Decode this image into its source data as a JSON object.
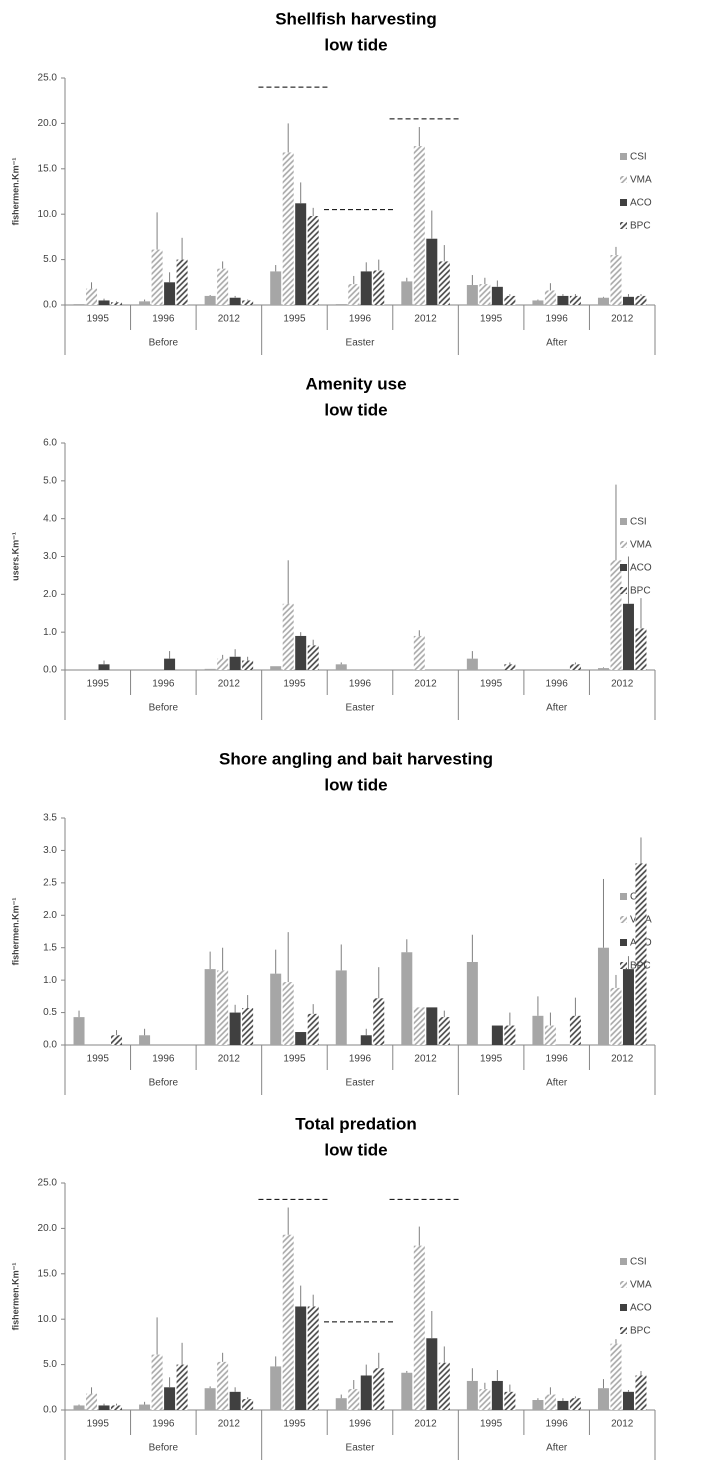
{
  "chart_data": [
    {
      "type": "bar",
      "title": "Shellfish harvesting",
      "subtitle": "low tide",
      "y_label": "fishermen.Km⁻¹",
      "categories": [
        "1995",
        "1996",
        "2012",
        "1995",
        "1996",
        "2012",
        "1995",
        "1996",
        "2012"
      ],
      "category_groups": [
        "Before",
        "Easter",
        "After"
      ],
      "ylim": [
        0,
        25
      ],
      "yticks": [
        {
          "value": 0,
          "label": "0.0"
        },
        {
          "value": 5,
          "label": "5.0"
        },
        {
          "value": 10,
          "label": "10.0"
        },
        {
          "value": 15,
          "label": "15.0"
        },
        {
          "value": 20,
          "label": "20.0"
        },
        {
          "value": 25,
          "label": "25.0"
        }
      ],
      "series": [
        {
          "name": "CSI",
          "color": "#a6a6a6",
          "hatch": false,
          "values": [
            0.1,
            0.4,
            1.0,
            3.7,
            0.1,
            2.6,
            2.2,
            0.5,
            0.8
          ],
          "errors": [
            0,
            0.2,
            0.1,
            0.7,
            0,
            0.4,
            1.1,
            0.1,
            0.1
          ]
        },
        {
          "name": "VMA",
          "color": "#a6a6a6",
          "hatch": true,
          "values": [
            1.8,
            6.1,
            4.0,
            16.8,
            2.3,
            17.5,
            2.3,
            1.6,
            5.5
          ],
          "errors": [
            0.7,
            4.1,
            0.8,
            3.2,
            0.9,
            2.1,
            0.7,
            0.8,
            0.9
          ]
        },
        {
          "name": "ACO",
          "color": "#404040",
          "hatch": false,
          "values": [
            0.5,
            2.5,
            0.8,
            11.2,
            3.7,
            7.3,
            2.0,
            1.0,
            0.9
          ],
          "errors": [
            0.2,
            1.1,
            0.2,
            2.3,
            1.0,
            3.1,
            0.7,
            0.2,
            0.3
          ]
        },
        {
          "name": "BPC",
          "color": "#404040",
          "hatch": true,
          "values": [
            0.3,
            5.0,
            0.5,
            9.8,
            3.8,
            4.8,
            1.0,
            1.0,
            1.0
          ],
          "errors": [
            0.1,
            2.4,
            0.1,
            0.9,
            1.2,
            1.8,
            0.2,
            0.2,
            0.2
          ]
        }
      ],
      "dashed_lines": [
        {
          "y": 24,
          "category": 3
        },
        {
          "y": 10.5,
          "category": 4
        },
        {
          "y": 20.5,
          "category": 5
        }
      ]
    },
    {
      "type": "bar",
      "title": "Amenity use",
      "subtitle": "low tide",
      "y_label": "users.Km⁻¹",
      "categories": [
        "1995",
        "1996",
        "2012",
        "1995",
        "1996",
        "2012",
        "1995",
        "1996",
        "2012"
      ],
      "category_groups": [
        "Before",
        "Easter",
        "After"
      ],
      "ylim": [
        0,
        6
      ],
      "yticks": [
        {
          "value": 0,
          "label": "0.0"
        },
        {
          "value": 1,
          "label": "1.0"
        },
        {
          "value": 2,
          "label": "2.0"
        },
        {
          "value": 3,
          "label": "3.0"
        },
        {
          "value": 4,
          "label": "4.0"
        },
        {
          "value": 5,
          "label": "5.0"
        },
        {
          "value": 6,
          "label": "6.0"
        }
      ],
      "series": [
        {
          "name": "CSI",
          "color": "#a6a6a6",
          "hatch": false,
          "values": [
            0,
            0,
            0.03,
            0.1,
            0.15,
            0,
            0.3,
            0,
            0.05
          ],
          "errors": [
            0,
            0,
            0,
            0,
            0.05,
            0,
            0.2,
            0,
            0.02
          ]
        },
        {
          "name": "VMA",
          "color": "#a6a6a6",
          "hatch": true,
          "values": [
            0,
            0,
            0.3,
            1.75,
            0,
            0.9,
            0,
            0,
            2.9
          ],
          "errors": [
            0,
            0,
            0.1,
            1.15,
            0,
            0.15,
            0,
            0,
            2.0
          ]
        },
        {
          "name": "ACO",
          "color": "#404040",
          "hatch": false,
          "values": [
            0.15,
            0.3,
            0.35,
            0.9,
            0,
            0,
            0,
            0,
            1.75
          ],
          "errors": [
            0.1,
            0.2,
            0.2,
            0.1,
            0,
            0,
            0,
            0,
            1.25
          ]
        },
        {
          "name": "BPC",
          "color": "#404040",
          "hatch": true,
          "values": [
            0,
            0,
            0.25,
            0.65,
            0,
            0,
            0.15,
            0.15,
            1.1
          ],
          "errors": [
            0,
            0,
            0.1,
            0.15,
            0,
            0,
            0.05,
            0.05,
            0.8
          ]
        }
      ]
    },
    {
      "type": "bar",
      "title": "Shore angling and bait harvesting",
      "subtitle": "low tide",
      "y_label": "fishermen.Km⁻¹",
      "categories": [
        "1995",
        "1996",
        "2012",
        "1995",
        "1996",
        "2012",
        "1995",
        "1996",
        "2012"
      ],
      "category_groups": [
        "Before",
        "Easter",
        "After"
      ],
      "ylim": [
        0,
        3.5
      ],
      "yticks": [
        {
          "value": 0,
          "label": "0.0"
        },
        0.5,
        {
          "value": 1,
          "label": "1.0"
        },
        1.5,
        {
          "value": 2,
          "label": "2.0"
        },
        2.5,
        {
          "value": 3,
          "label": "3.0"
        },
        3.5
      ],
      "series": [
        {
          "name": "CSI",
          "color": "#a6a6a6",
          "hatch": false,
          "values": [
            0.43,
            0.15,
            1.17,
            1.1,
            1.15,
            1.43,
            1.28,
            0.45,
            1.5
          ],
          "errors": [
            0.1,
            0.1,
            0.27,
            0.37,
            0.4,
            0.2,
            0.42,
            0.3,
            1.06
          ]
        },
        {
          "name": "VMA",
          "color": "#a6a6a6",
          "hatch": true,
          "values": [
            0,
            0,
            1.15,
            0.97,
            0,
            0.58,
            0,
            0.3,
            0.88
          ],
          "errors": [
            0,
            0,
            0.35,
            0.77,
            0,
            0,
            0,
            0.2,
            0.2
          ]
        },
        {
          "name": "ACO",
          "color": "#404040",
          "hatch": false,
          "values": [
            0,
            0,
            0.5,
            0.2,
            0.15,
            0.58,
            0.3,
            0,
            1.17
          ],
          "errors": [
            0,
            0,
            0.12,
            0,
            0.1,
            0,
            0,
            0,
            0.2
          ]
        },
        {
          "name": "BPC",
          "color": "#404040",
          "hatch": true,
          "values": [
            0.15,
            0,
            0.57,
            0.48,
            0.72,
            0.43,
            0.3,
            0.45,
            2.8
          ],
          "errors": [
            0.08,
            0,
            0.2,
            0.15,
            0.48,
            0.1,
            0.2,
            0.28,
            0.4
          ]
        }
      ]
    },
    {
      "type": "bar",
      "title": "Total predation",
      "subtitle": "low tide",
      "y_label": "fishermen.Km⁻¹",
      "categories": [
        "1995",
        "1996",
        "2012",
        "1995",
        "1996",
        "2012",
        "1995",
        "1996",
        "2012"
      ],
      "category_groups": [
        "Before",
        "Easter",
        "After"
      ],
      "ylim": [
        0,
        25
      ],
      "yticks": [
        {
          "value": 0,
          "label": "0.0"
        },
        {
          "value": 5,
          "label": "5.0"
        },
        {
          "value": 10,
          "label": "10.0"
        },
        {
          "value": 15,
          "label": "15.0"
        },
        {
          "value": 20,
          "label": "20.0"
        },
        {
          "value": 25,
          "label": "25.0"
        }
      ],
      "series": [
        {
          "name": "CSI",
          "color": "#a6a6a6",
          "hatch": false,
          "values": [
            0.5,
            0.6,
            2.4,
            4.8,
            1.3,
            4.1,
            3.2,
            1.1,
            2.4
          ],
          "errors": [
            0.1,
            0.3,
            0.2,
            1.1,
            0.4,
            0.2,
            1.4,
            0.2,
            1.0
          ]
        },
        {
          "name": "VMA",
          "color": "#a6a6a6",
          "hatch": true,
          "values": [
            1.8,
            6.1,
            5.3,
            19.3,
            2.3,
            18.1,
            2.3,
            1.7,
            7.3
          ],
          "errors": [
            0.7,
            4.1,
            1.0,
            3.0,
            1.0,
            2.1,
            0.7,
            0.8,
            0.5
          ]
        },
        {
          "name": "ACO",
          "color": "#404040",
          "hatch": false,
          "values": [
            0.5,
            2.5,
            2.0,
            11.4,
            3.8,
            7.9,
            3.2,
            1.0,
            2.0
          ],
          "errors": [
            0.2,
            1.1,
            0.5,
            2.3,
            1.2,
            3.0,
            1.2,
            0.3,
            0.2
          ]
        },
        {
          "name": "BPC",
          "color": "#404040",
          "hatch": true,
          "values": [
            0.5,
            5.0,
            1.2,
            11.4,
            4.6,
            5.2,
            2.0,
            1.3,
            3.8
          ],
          "errors": [
            0.2,
            2.4,
            0.2,
            1.3,
            1.7,
            1.8,
            0.8,
            0.2,
            0.5
          ]
        }
      ],
      "dashed_lines": [
        {
          "y": 23.2,
          "category": 3
        },
        {
          "y": 9.7,
          "category": 4
        },
        {
          "y": 23.2,
          "category": 5
        }
      ]
    }
  ]
}
